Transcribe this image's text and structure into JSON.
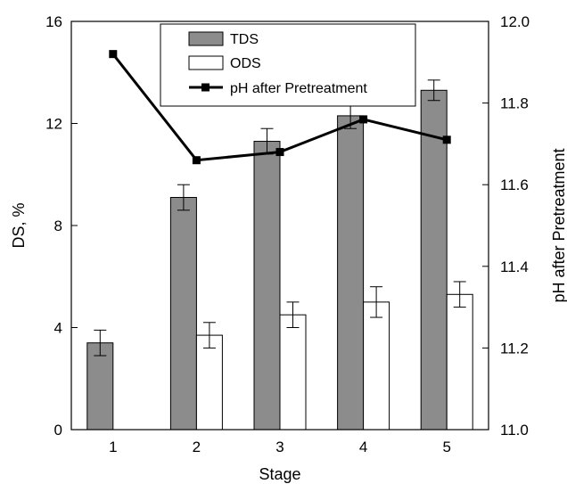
{
  "chart_data": {
    "type": "bar",
    "xlabel": "Stage",
    "ylabel": "DS, %",
    "y2label": "pH after Pretreatment",
    "categories": [
      "1",
      "2",
      "3",
      "4",
      "5"
    ],
    "ylim": [
      0,
      16
    ],
    "y2lim": [
      11.0,
      12.0
    ],
    "yticks": [
      "0",
      "4",
      "8",
      "12",
      "16"
    ],
    "y2ticks": [
      "11.0",
      "11.2",
      "11.4",
      "11.6",
      "11.8",
      "12.0"
    ],
    "grid": false,
    "legend_position": "top-center",
    "series": [
      {
        "name": "TDS",
        "type": "bar",
        "axis": "left",
        "color": "#8c8c8c",
        "values": [
          3.4,
          9.1,
          11.3,
          12.3,
          13.3
        ],
        "errors": [
          0.5,
          0.5,
          0.5,
          0.5,
          0.4
        ]
      },
      {
        "name": "ODS",
        "type": "bar",
        "axis": "left",
        "color": "#ffffff",
        "values": [
          null,
          3.7,
          4.5,
          5.0,
          5.3
        ],
        "errors": [
          null,
          0.5,
          0.5,
          0.6,
          0.5
        ]
      },
      {
        "name": "pH after Pretreatment",
        "type": "line",
        "axis": "right",
        "color": "#000000",
        "marker": "square",
        "values": [
          11.92,
          11.66,
          11.68,
          11.76,
          11.71
        ]
      }
    ]
  }
}
